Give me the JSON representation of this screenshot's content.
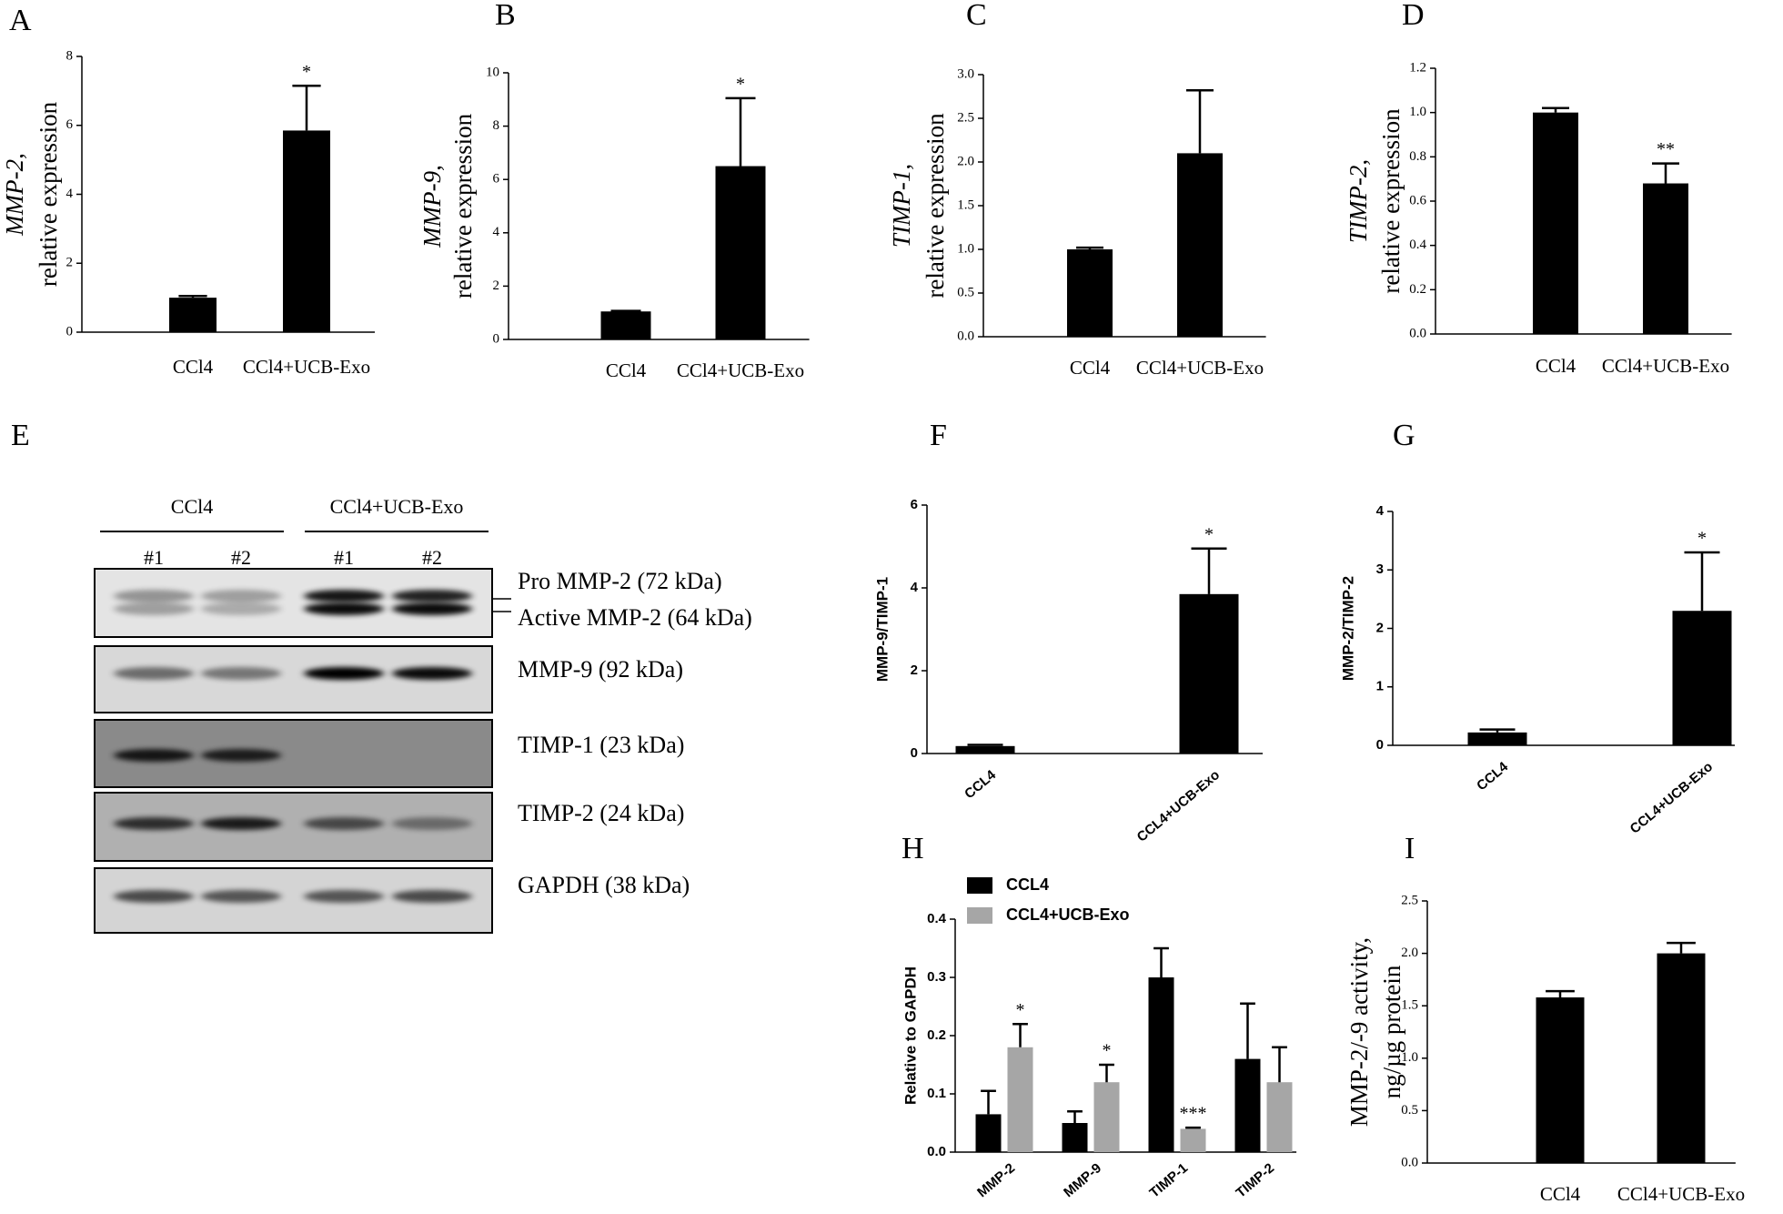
{
  "chart_data": [
    {
      "type": "bar",
      "panel": "A",
      "ylabel": [
        "MMP-2,",
        "relative expression"
      ],
      "italic_first_line": true,
      "categories": [
        "CCl4",
        "CCl4+UCB-Exo"
      ],
      "values": [
        1.0,
        5.85
      ],
      "errors": [
        0.05,
        1.3
      ],
      "annotations": [
        null,
        "*"
      ],
      "color": "#000000",
      "ylim": [
        0,
        8
      ],
      "yticks": [
        0,
        2,
        4,
        6,
        8
      ]
    },
    {
      "type": "bar",
      "panel": "B",
      "ylabel": [
        "MMP-9,",
        "relative expression"
      ],
      "italic_first_line": true,
      "categories": [
        "CCl4",
        "CCl4+UCB-Exo"
      ],
      "values": [
        1.05,
        6.5
      ],
      "errors": [
        0.02,
        2.55
      ],
      "annotations": [
        null,
        "*"
      ],
      "color": "#000000",
      "ylim": [
        0,
        10
      ],
      "yticks": [
        0,
        2,
        4,
        6,
        8,
        10
      ]
    },
    {
      "type": "bar",
      "panel": "C",
      "ylabel": [
        "TIMP-1,",
        "relative expression"
      ],
      "italic_first_line": true,
      "categories": [
        "CCl4",
        "CCl4+UCB-Exo"
      ],
      "values": [
        1.0,
        2.1
      ],
      "errors": [
        0.02,
        0.72
      ],
      "color": "#000000",
      "ylim": [
        0,
        3
      ],
      "yticks": [
        {
          "value": 0,
          "label": "0.0"
        },
        {
          "value": 0.5,
          "label": "0.5"
        },
        {
          "value": 1,
          "label": "1.0"
        },
        {
          "value": 1.5,
          "label": "1.5"
        },
        {
          "value": 2,
          "label": "2.0"
        },
        {
          "value": 2.5,
          "label": "2.5"
        },
        {
          "value": 3,
          "label": "3.0"
        }
      ]
    },
    {
      "type": "bar",
      "panel": "D",
      "ylabel": [
        "TIMP-2,",
        "relative expression"
      ],
      "italic_first_line": true,
      "categories": [
        "CCl4",
        "CCl4+UCB-Exo"
      ],
      "values": [
        1.0,
        0.68
      ],
      "errors": [
        0.02,
        0.09
      ],
      "annotations": [
        null,
        "**"
      ],
      "color": "#000000",
      "ylim": [
        0,
        1.2
      ],
      "yticks": [
        {
          "value": 0,
          "label": "0.0"
        },
        {
          "value": 0.2,
          "label": "0.2"
        },
        {
          "value": 0.4,
          "label": "0.4"
        },
        {
          "value": 0.6,
          "label": "0.6"
        },
        {
          "value": 0.8,
          "label": "0.8"
        },
        {
          "value": 1,
          "label": "1.0"
        },
        {
          "value": 1.2,
          "label": "1.2"
        }
      ]
    },
    {
      "type": "bar",
      "panel": "F",
      "ylabel": [
        "MMP-9/TIMP-1"
      ],
      "categories": [
        "CCL4",
        "CCL4+UCB-Exo"
      ],
      "values": [
        0.18,
        3.85
      ],
      "errors": [
        0.03,
        1.1
      ],
      "annotations": [
        null,
        "*"
      ],
      "color": "#000000",
      "ylim": [
        0,
        6
      ],
      "yticks": [
        0,
        2,
        4,
        6
      ]
    },
    {
      "type": "bar",
      "panel": "G",
      "ylabel": [
        "MMP-2/TIMP-2"
      ],
      "categories": [
        "CCL4",
        "CCL4+UCB-Exo"
      ],
      "values": [
        0.22,
        2.3
      ],
      "errors": [
        0.05,
        1.0
      ],
      "annotations": [
        null,
        "*"
      ],
      "color": "#000000",
      "ylim": [
        0,
        4
      ],
      "yticks": [
        0,
        1,
        2,
        3,
        4
      ]
    },
    {
      "type": "bar",
      "panel": "H",
      "ylabel": [
        "Relative to GAPDH"
      ],
      "categories": [
        "MMP-2",
        "MMP-9",
        "TIMP-1",
        "TIMP-2"
      ],
      "series": [
        {
          "name": "CCL4",
          "color": "#000000",
          "values": [
            0.065,
            0.05,
            0.3,
            0.16
          ],
          "errors": [
            0.04,
            0.02,
            0.05,
            0.095
          ]
        },
        {
          "name": "CCL4+UCB-Exo",
          "color": "#a6a6a6",
          "values": [
            0.18,
            0.12,
            0.04,
            0.12
          ],
          "errors": [
            0.04,
            0.03,
            0.002,
            0.06
          ],
          "annotations": [
            "*",
            "*",
            "***",
            null
          ]
        }
      ],
      "ylim": [
        0,
        0.4
      ],
      "yticks": [
        {
          "value": 0,
          "label": "0.0"
        },
        {
          "value": 0.1,
          "label": "0.1"
        },
        {
          "value": 0.2,
          "label": "0.2"
        },
        {
          "value": 0.3,
          "label": "0.3"
        },
        {
          "value": 0.4,
          "label": "0.4"
        }
      ]
    },
    {
      "type": "bar",
      "panel": "I",
      "ylabel": [
        "MMP-2/-9 activity,",
        "ng/µg protein"
      ],
      "categories": [
        "CCl4",
        "CCl4+UCB-Exo"
      ],
      "values": [
        1.58,
        2.0
      ],
      "errors": [
        0.06,
        0.1
      ],
      "color": "#000000",
      "ylim": [
        0,
        2.5
      ],
      "yticks": [
        {
          "value": 0,
          "label": "0.0"
        },
        {
          "value": 0.5,
          "label": "0.5"
        },
        {
          "value": 1,
          "label": "1.0"
        },
        {
          "value": 1.5,
          "label": "1.5"
        },
        {
          "value": 2,
          "label": "2.0"
        },
        {
          "value": 2.5,
          "label": "2.5"
        }
      ]
    }
  ],
  "blot": {
    "panel": "E",
    "groups": [
      {
        "label": "CCl4",
        "lanes": [
          "#1",
          "#2"
        ]
      },
      {
        "label": "CCl4+UCB-Exo",
        "lanes": [
          "#1",
          "#2"
        ]
      }
    ],
    "rows": [
      [
        "Pro MMP-2 (72 kDa)",
        "Active  MMP-2 (64 kDa)"
      ],
      [
        "MMP-9 (92 kDa)"
      ],
      [
        "TIMP-1 (23 kDa)"
      ],
      [
        "TIMP-2 (24 kDa)"
      ],
      [
        "GAPDH  (38 kDa)"
      ]
    ]
  }
}
